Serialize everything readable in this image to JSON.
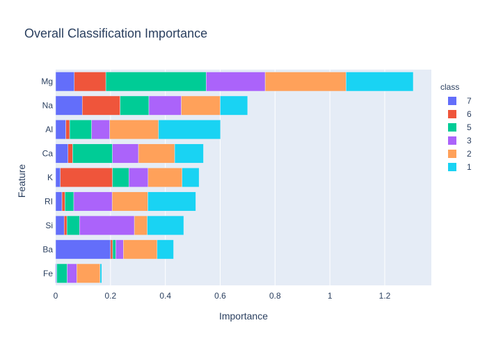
{
  "chart_data": {
    "type": "bar",
    "orientation": "horizontal",
    "barmode": "stack",
    "title": "Overall Classification Importance",
    "xlabel": "Importance",
    "ylabel": "Feature",
    "xlim": [
      0,
      1.37
    ],
    "xticks": [
      0,
      0.2,
      0.4,
      0.6,
      0.8,
      1,
      1.2
    ],
    "xtick_labels": [
      "0",
      "0.2",
      "0.4",
      "0.6",
      "0.8",
      "1",
      "1.2"
    ],
    "categories": [
      "Mg",
      "Na",
      "Al",
      "Ca",
      "K",
      "RI",
      "Si",
      "Ba",
      "Fe"
    ],
    "grid": true,
    "legend": {
      "title": "class",
      "placement": "right"
    },
    "series": [
      {
        "name": "7",
        "color": "#636efa",
        "values": [
          0.068,
          0.097,
          0.037,
          0.045,
          0.017,
          0.023,
          0.031,
          0.2,
          0.003
        ]
      },
      {
        "name": "6",
        "color": "#ef553b",
        "values": [
          0.115,
          0.138,
          0.014,
          0.017,
          0.19,
          0.011,
          0.01,
          0.008,
          0.001
        ]
      },
      {
        "name": "5",
        "color": "#00cc96",
        "values": [
          0.366,
          0.105,
          0.08,
          0.145,
          0.06,
          0.032,
          0.046,
          0.011,
          0.038
        ]
      },
      {
        "name": "3",
        "color": "#ab63fa",
        "values": [
          0.215,
          0.118,
          0.066,
          0.095,
          0.07,
          0.14,
          0.2,
          0.028,
          0.035
        ]
      },
      {
        "name": "2",
        "color": "#ffa15a",
        "values": [
          0.295,
          0.142,
          0.178,
          0.132,
          0.124,
          0.13,
          0.047,
          0.123,
          0.085
        ]
      },
      {
        "name": "1",
        "color": "#19d3f3",
        "values": [
          0.245,
          0.1,
          0.226,
          0.105,
          0.062,
          0.175,
          0.133,
          0.06,
          0.006
        ]
      }
    ]
  }
}
